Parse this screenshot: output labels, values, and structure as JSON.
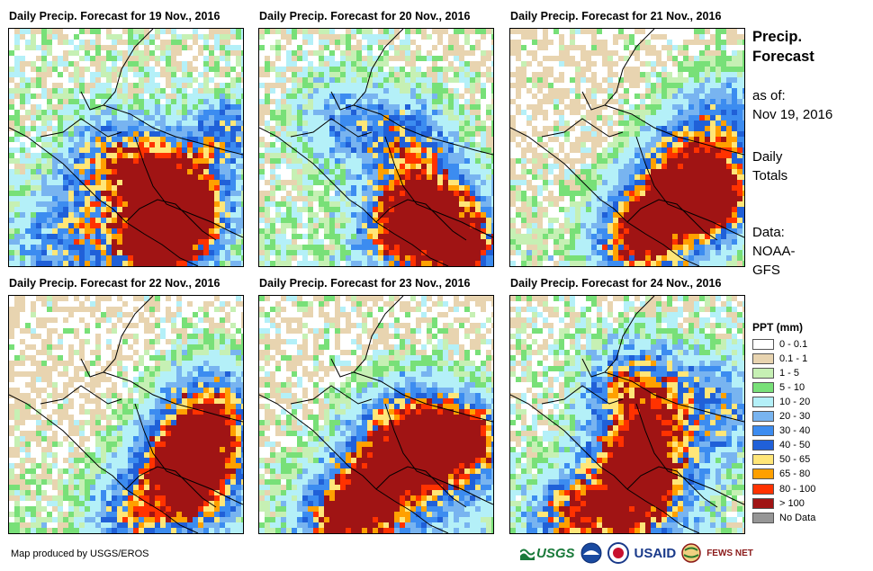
{
  "panels": [
    {
      "title": "Daily Precip. Forecast for 19 Nov., 2016"
    },
    {
      "title": "Daily Precip. Forecast for 20 Nov., 2016"
    },
    {
      "title": "Daily Precip. Forecast for 21 Nov., 2016"
    },
    {
      "title": "Daily Precip. Forecast for 22 Nov., 2016"
    },
    {
      "title": "Daily Precip. Forecast for 23 Nov., 2016"
    },
    {
      "title": "Daily Precip. Forecast for 24 Nov., 2016"
    }
  ],
  "sidebar": {
    "title_line1": "Precip.",
    "title_line2": "Forecast",
    "asof_label": "as of:",
    "asof_date": "Nov 19, 2016",
    "totals_line1": "Daily",
    "totals_line2": "Totals",
    "data_label": "Data:",
    "data_source_line1": "NOAA-",
    "data_source_line2": "GFS"
  },
  "legend": {
    "title": "PPT (mm)",
    "items": [
      {
        "label": "0 - 0.1",
        "color": "#ffffff"
      },
      {
        "label": "0.1 - 1",
        "color": "#e8d4b0"
      },
      {
        "label": "1 - 5",
        "color": "#c6f0b4"
      },
      {
        "label": "5 - 10",
        "color": "#78e078"
      },
      {
        "label": "10 - 20",
        "color": "#b4f0f8"
      },
      {
        "label": "20 - 30",
        "color": "#78b4f0"
      },
      {
        "label": "30 - 40",
        "color": "#3c8cf0"
      },
      {
        "label": "40 - 50",
        "color": "#2060d8"
      },
      {
        "label": "50 - 65",
        "color": "#ffe678"
      },
      {
        "label": "65 - 80",
        "color": "#ffa000"
      },
      {
        "label": "80 - 100",
        "color": "#ff3200"
      },
      {
        "label": "> 100",
        "color": "#a01414"
      },
      {
        "label": "No Data",
        "color": "#969696"
      }
    ]
  },
  "credit": "Map produced by USGS/EROS",
  "logos": {
    "usgs": "USGS",
    "usaid": "USAID",
    "fews": "FEWS NET"
  }
}
